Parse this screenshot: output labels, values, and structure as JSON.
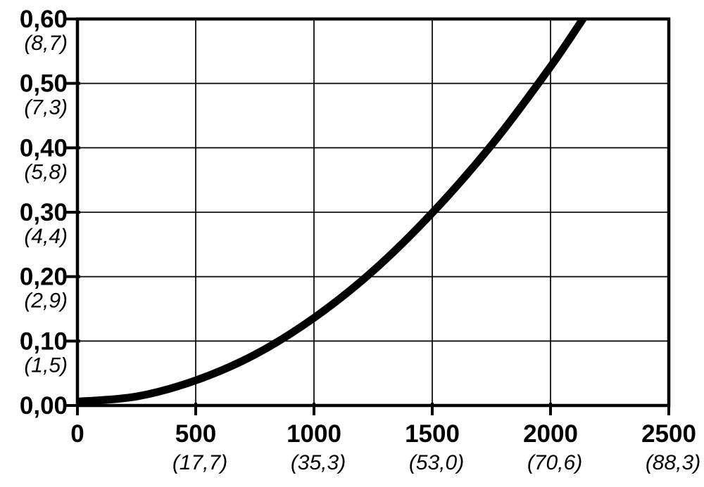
{
  "chart_data": {
    "type": "line",
    "title": "",
    "grid": true,
    "legend": false,
    "x_axis": {
      "range": [
        0,
        2500
      ],
      "ticks": [
        {
          "value": 0,
          "label": "0",
          "secondary": ""
        },
        {
          "value": 500,
          "label": "500",
          "secondary": "(17,7)"
        },
        {
          "value": 1000,
          "label": "1000",
          "secondary": "(35,3)"
        },
        {
          "value": 1500,
          "label": "1500",
          "secondary": "(53,0)"
        },
        {
          "value": 2000,
          "label": "2000",
          "secondary": "(70,6)"
        },
        {
          "value": 2500,
          "label": "2500",
          "secondary": "(88,3)"
        }
      ]
    },
    "y_axis": {
      "range": [
        0,
        0.6
      ],
      "ticks": [
        {
          "value": 0.6,
          "label": "0,60",
          "secondary": "(8,7)"
        },
        {
          "value": 0.5,
          "label": "0,50",
          "secondary": "(7,3)"
        },
        {
          "value": 0.4,
          "label": "0,40",
          "secondary": "(5,8)"
        },
        {
          "value": 0.3,
          "label": "0,30",
          "secondary": "(4,4)"
        },
        {
          "value": 0.2,
          "label": "0,20",
          "secondary": "(2,9)"
        },
        {
          "value": 0.1,
          "label": "0,10",
          "secondary": "(1,5)"
        },
        {
          "value": 0.0,
          "label": "0,00",
          "secondary": ""
        }
      ]
    },
    "series": [
      {
        "name": "curve",
        "color": "#000000",
        "stroke_width": 11,
        "points": [
          [
            0,
            0.006
          ],
          [
            250,
            0.014
          ],
          [
            500,
            0.039
          ],
          [
            750,
            0.079
          ],
          [
            1000,
            0.136
          ],
          [
            1250,
            0.209
          ],
          [
            1500,
            0.299
          ],
          [
            1750,
            0.404
          ],
          [
            2000,
            0.526
          ],
          [
            2160,
            0.613
          ]
        ]
      }
    ]
  },
  "colors": {
    "background": "#ffffff",
    "frame": "#000000",
    "grid": "#111111",
    "tick": "#000000",
    "text": "#000000"
  }
}
